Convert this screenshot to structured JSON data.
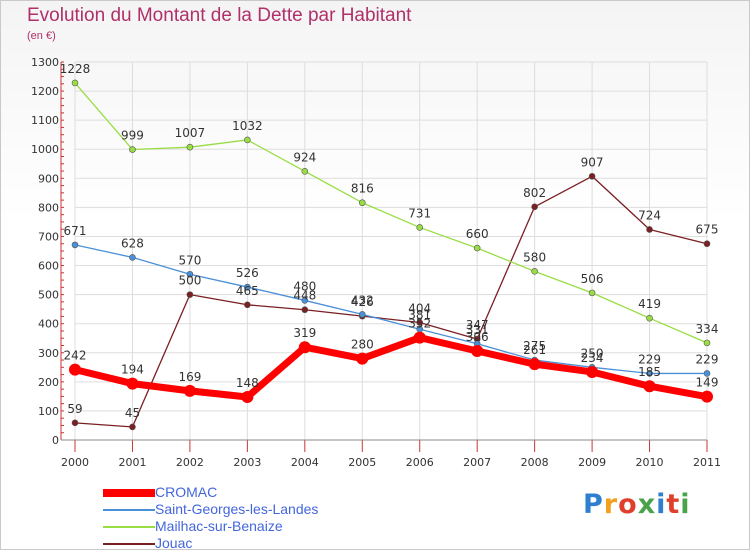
{
  "header": {
    "title": "Evolution du Montant de la Dette par Habitant",
    "subtitle": "(en €)"
  },
  "logo": {
    "text": "Proxiti",
    "colors": [
      "#2f7fd0",
      "#f2a01e",
      "#e0402b",
      "#4aa34a",
      "#2f7fd0",
      "#e0402b",
      "#4aa34a"
    ]
  },
  "chart_data": {
    "type": "line",
    "title": "Evolution du Montant de la Dette par Habitant",
    "subtitle": "(en €)",
    "x": [
      "2000",
      "2001",
      "2002",
      "2003",
      "2004",
      "2005",
      "2006",
      "2007",
      "2008",
      "2009",
      "2010",
      "2011"
    ],
    "ylim": [
      0,
      1300
    ],
    "yticks": [
      0,
      100,
      200,
      300,
      400,
      500,
      600,
      700,
      800,
      900,
      1000,
      1100,
      1200,
      1300
    ],
    "grid": true,
    "legend_position": "bottom-left",
    "series": [
      {
        "name": "CROMAC",
        "color": "#ff0000",
        "values": [
          242,
          194,
          169,
          148,
          319,
          280,
          352,
          306,
          261,
          234,
          185,
          149
        ],
        "labels": [
          "242",
          "194",
          "169",
          "148",
          "319",
          "280",
          "352",
          "306",
          "261",
          "234",
          "185",
          "149"
        ]
      },
      {
        "name": "Saint-Georges-les-Landes",
        "color": "#4a90d9",
        "values": [
          671,
          628,
          570,
          526,
          480,
          432,
          381,
          331,
          275,
          250,
          229,
          229
        ],
        "labels": [
          "671",
          "628",
          "570",
          "526",
          "480",
          "432",
          "381",
          "331",
          "275",
          "250",
          "229",
          "229"
        ]
      },
      {
        "name": "Mailhac-sur-Benaize",
        "color": "#99dd44",
        "values": [
          1228,
          999,
          1007,
          1032,
          924,
          816,
          731,
          660,
          580,
          506,
          419,
          334
        ],
        "labels": [
          "1228",
          "999",
          "1007",
          "1032",
          "924",
          "816",
          "731",
          "660",
          "580",
          "506",
          "419",
          "334"
        ]
      },
      {
        "name": "Jouac",
        "color": "#7a1f22",
        "values": [
          59,
          45,
          500,
          465,
          448,
          426,
          404,
          347,
          802,
          907,
          724,
          675
        ],
        "labels": [
          "59",
          "45",
          "500",
          "465",
          "448",
          "426",
          "404",
          "347",
          "802",
          "907",
          "724",
          "675"
        ]
      }
    ]
  }
}
